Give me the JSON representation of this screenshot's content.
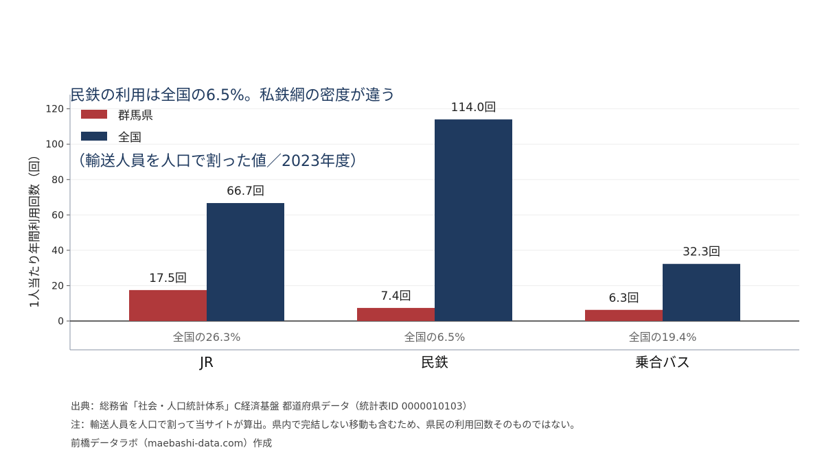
{
  "title": {
    "line1": "民鉄の利用は全国の6.5%。私鉄網の密度が違う",
    "line2": "（輸送人員を人口で割った値／2023年度）"
  },
  "colors": {
    "gunma": "#b0393b",
    "national": "#1f3a5f",
    "axis": "#333333",
    "grid": "#eeeeee"
  },
  "chart_data": {
    "type": "bar",
    "categories": [
      "JR",
      "民鉄",
      "乗合バス"
    ],
    "series": [
      {
        "name": "群馬県",
        "values": [
          17.5,
          7.4,
          6.3
        ],
        "labels": [
          "17.5回",
          "7.4回",
          "6.3回"
        ]
      },
      {
        "name": "全国",
        "values": [
          66.7,
          114.0,
          32.3
        ],
        "labels": [
          "66.7回",
          "114.0回",
          "32.3回"
        ]
      }
    ],
    "ratio_labels": [
      "全国の26.3%",
      "全国の6.5%",
      "全国の19.4%"
    ],
    "ylabel": "1人当たり年間利用回数（回）",
    "yticks": [
      0,
      20,
      40,
      60,
      80,
      100,
      120
    ],
    "ylim": [
      0,
      128
    ],
    "grid": true,
    "legend_position": "top-left"
  },
  "footer": {
    "source": "出典：総務省「社会・人口統計体系」C経済基盤 都道府県データ（統計表ID 0000010103）",
    "note": "注：輸送人員を人口で割って当サイトが算出。県内で完結しない移動も含むため、県民の利用回数そのものではない。",
    "credit": "前橋データラボ（maebashi-data.com）作成"
  }
}
